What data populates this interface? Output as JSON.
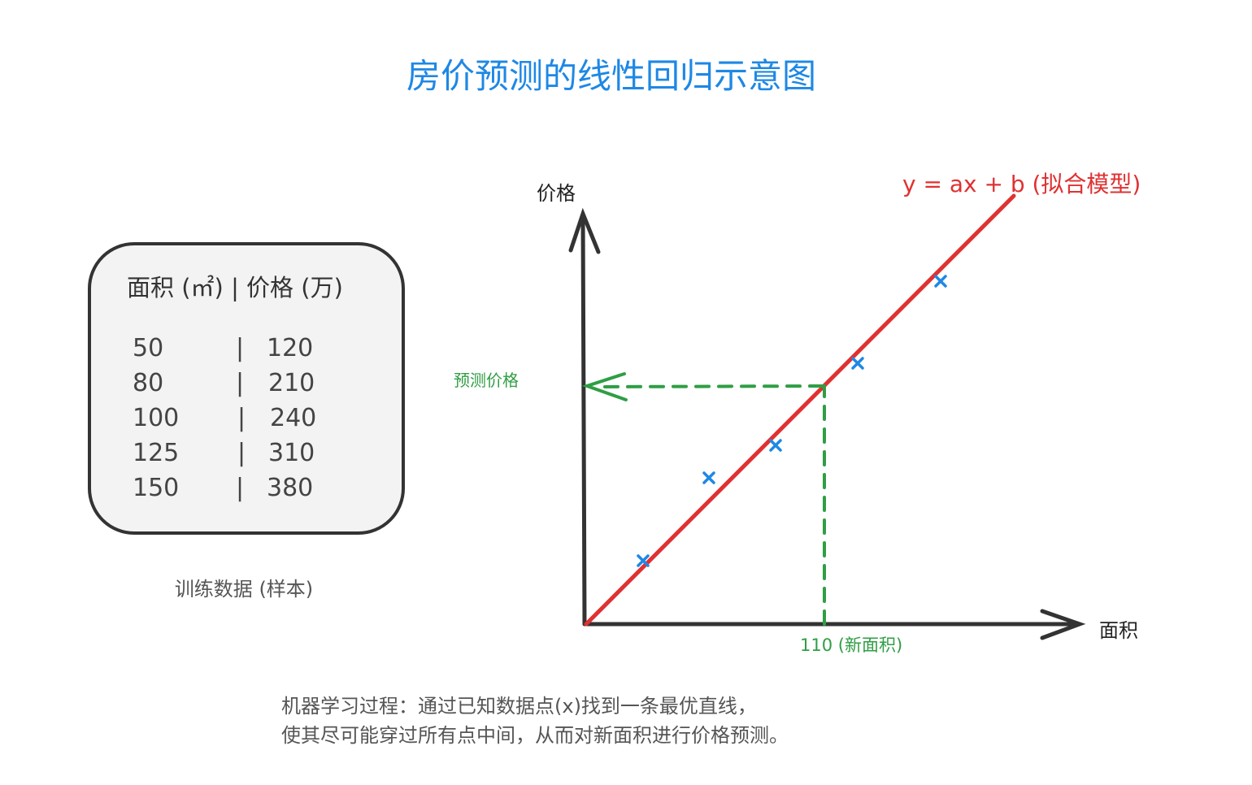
{
  "title": "房价预测的线性回归示意图",
  "table": {
    "header": "面积 (㎡) | 价格 (万)",
    "rows": [
      {
        "area": "50",
        "sep": "|",
        "price": "120"
      },
      {
        "area": "80",
        "sep": "|",
        "price": "210"
      },
      {
        "area": "100",
        "sep": "|",
        "price": "240"
      },
      {
        "area": "125",
        "sep": "|",
        "price": "310"
      },
      {
        "area": "150",
        "sep": "|",
        "price": "380"
      }
    ],
    "caption": "训练数据 (样本)"
  },
  "chart": {
    "y_axis_label": "价格",
    "x_axis_label": "面积",
    "model_label": "y = ax + b (拟合模型)",
    "predicted_label": "预测价格",
    "new_x_label": "110 (新面积)",
    "point_marker": "x"
  },
  "description": {
    "line1": "机器学习过程：通过已知数据点(x)找到一条最优直线，",
    "line2": "使其尽可能穿过所有点中间，从而对新面积进行价格预测。"
  },
  "colors": {
    "title": "#1e88e5",
    "model_line": "#e03131",
    "points": "#1e88e5",
    "prediction": "#2f9e44",
    "axis": "#333333",
    "table_fill": "#f3f3f3",
    "text": "#555555"
  }
}
